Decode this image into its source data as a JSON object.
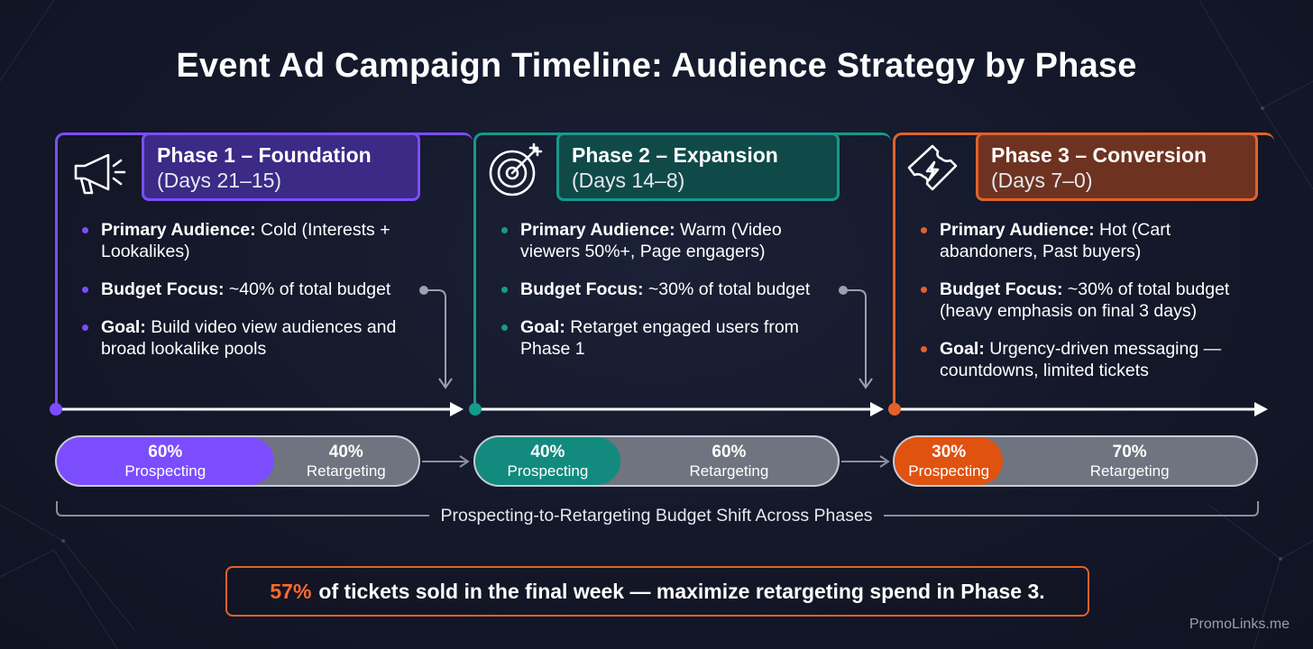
{
  "title": "Event Ad Campaign Timeline: Audience Strategy by Phase",
  "colors": {
    "phase1": "#7c4dff",
    "phase2": "#159a8c",
    "phase3": "#e0622a",
    "retargeting": "#6f7480",
    "background": "#141829"
  },
  "phases": [
    {
      "icon": "megaphone-icon",
      "title": "Phase 1 – Foundation",
      "days": "(Days 21–15)",
      "bullets": [
        {
          "label": "Primary Audience:",
          "text": " Cold (Interests + Lookalikes)"
        },
        {
          "label": "Budget Focus:",
          "text": " ~40% of total budget"
        },
        {
          "label": "Goal:",
          "text": " Build video view audiences and broad lookalike pools"
        }
      ],
      "split": {
        "prospecting_pct": "60%",
        "prospecting_label": "Prospecting",
        "retargeting_pct": "40%",
        "retargeting_label": "Retargeting",
        "prospecting_value": 60
      }
    },
    {
      "icon": "target-icon",
      "title": "Phase 2 – Expansion",
      "days": "(Days 14–8)",
      "bullets": [
        {
          "label": "Primary Audience:",
          "text": " Warm (Video viewers 50%+, Page engagers)"
        },
        {
          "label": "Budget Focus:",
          "text": " ~30% of total budget"
        },
        {
          "label": "Goal:",
          "text": " Retarget engaged users from Phase 1"
        }
      ],
      "split": {
        "prospecting_pct": "40%",
        "prospecting_label": "Prospecting",
        "retargeting_pct": "60%",
        "retargeting_label": "Retargeting",
        "prospecting_value": 40
      }
    },
    {
      "icon": "ticket-icon",
      "title": "Phase 3 – Conversion",
      "days": "(Days 7–0)",
      "bullets": [
        {
          "label": "Primary Audience:",
          "text": " Hot (Cart abandoners, Past buyers)"
        },
        {
          "label": "Budget Focus:",
          "text": " ~30% of total budget (heavy emphasis on final 3 days)"
        },
        {
          "label": "Goal:",
          "text": " Urgency-driven messaging — countdowns, limited tickets"
        }
      ],
      "split": {
        "prospecting_pct": "30%",
        "prospecting_label": "Prospecting",
        "retargeting_pct": "70%",
        "retargeting_label": "Retargeting",
        "prospecting_value": 30
      }
    }
  ],
  "shift_label": "Prospecting-to-Retargeting Budget Shift Across Phases",
  "callout": {
    "highlight": "57%",
    "text": "of tickets sold in the final week — maximize retargeting spend in Phase 3."
  },
  "watermark": "PromoLinks.me"
}
